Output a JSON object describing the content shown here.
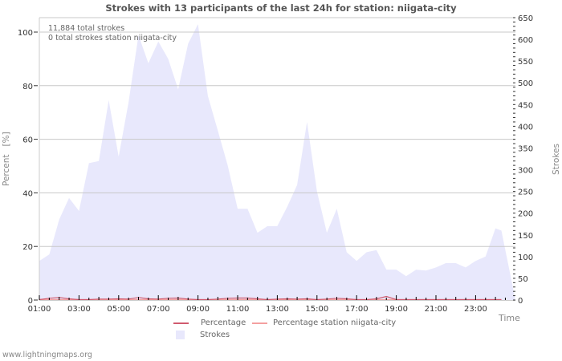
{
  "chart_data": {
    "type": "area",
    "title": "Strokes with 13 participants of the last 24h for station: niigata-city",
    "xlabel": "Time",
    "ylabel_left": "Percent   [%]",
    "ylabel_right": "Strokes",
    "ylim_left": [
      0,
      104
    ],
    "ylim_right": [
      0,
      650
    ],
    "left_ticks": [
      0,
      20,
      40,
      60,
      80,
      100
    ],
    "right_ticks": [
      0,
      50,
      100,
      150,
      200,
      250,
      300,
      350,
      400,
      450,
      500,
      550,
      600,
      650
    ],
    "x_tick_labels": [
      "01:00",
      "03:00",
      "05:00",
      "07:00",
      "09:00",
      "11:00",
      "13:00",
      "15:00",
      "17:00",
      "19:00",
      "21:00",
      "23:00"
    ],
    "grid": true,
    "legend_position": "bottom",
    "annotations": [
      "11,884 total strokes",
      "0 total strokes station niigata-city"
    ],
    "x_hours": [
      1.0,
      1.5,
      2.0,
      2.5,
      3.0,
      3.5,
      4.0,
      4.5,
      5.0,
      5.5,
      6.0,
      6.5,
      7.0,
      7.5,
      8.0,
      8.5,
      9.0,
      9.5,
      10.0,
      10.5,
      11.0,
      11.5,
      12.0,
      12.5,
      13.0,
      13.5,
      14.0,
      14.5,
      15.0,
      15.5,
      16.0,
      16.5,
      17.0,
      17.5,
      18.0,
      18.5,
      19.0,
      19.5,
      20.0,
      20.5,
      21.0,
      21.5,
      22.0,
      22.5,
      23.0,
      23.5,
      24.0,
      24.3
    ],
    "series": [
      {
        "name": "Strokes",
        "axis": "right",
        "color": "#e8e8fc",
        "values": [
          90,
          105,
          185,
          235,
          205,
          315,
          320,
          460,
          330,
          455,
          610,
          545,
          595,
          555,
          485,
          590,
          635,
          470,
          390,
          310,
          210,
          210,
          155,
          170,
          170,
          215,
          265,
          410,
          250,
          155,
          210,
          110,
          90,
          110,
          115,
          70,
          70,
          55,
          70,
          68,
          75,
          85,
          85,
          75,
          90,
          100,
          165,
          160
        ]
      },
      {
        "name": "Percentage",
        "axis": "left",
        "color": "#d05a6e",
        "values": [
          0,
          0.5,
          0.8,
          0.3,
          0,
          0,
          0.2,
          0.2,
          0.3,
          0.2,
          0.8,
          0.3,
          0.2,
          0.5,
          0.6,
          0.2,
          0,
          0,
          0.2,
          0.5,
          0.6,
          0.6,
          0.3,
          0,
          0.2,
          0.3,
          0.2,
          0.3,
          0,
          0.2,
          0.5,
          0.3,
          0,
          0,
          0.3,
          1.2,
          0,
          0,
          0,
          0,
          0,
          0,
          0,
          0,
          0,
          0,
          0,
          0
        ]
      },
      {
        "name": "Percentage station niigata-city",
        "axis": "left",
        "color": "#f4a0a0",
        "values": [
          0,
          0,
          0,
          0,
          0,
          0,
          0,
          0,
          0,
          0,
          0,
          0,
          0,
          0,
          0,
          0,
          0,
          0,
          0,
          0,
          0,
          0,
          0,
          0,
          0,
          0,
          0,
          0,
          0,
          0,
          0,
          0,
          0,
          0,
          0,
          0,
          0,
          0,
          0,
          0,
          0,
          0,
          0,
          0,
          0,
          0,
          0,
          0
        ]
      }
    ]
  },
  "header": {
    "title": "Strokes with 13 participants of the last 24h for station: niigata-city"
  },
  "info": {
    "total_strokes": "11,884 total strokes",
    "station_strokes": "0 total strokes station niigata-city"
  },
  "axes": {
    "left_label": "Percent   [%]",
    "right_label": "Strokes",
    "x_label": "Time"
  },
  "legend": {
    "items": [
      {
        "label": "Percentage",
        "color": "#d05a6e"
      },
      {
        "label": "Percentage station niigata-city",
        "color": "#f4a0a0"
      },
      {
        "label": "Strokes",
        "color": "#e8e8fc"
      }
    ]
  },
  "footer": {
    "watermark": "www.lightningmaps.org"
  }
}
